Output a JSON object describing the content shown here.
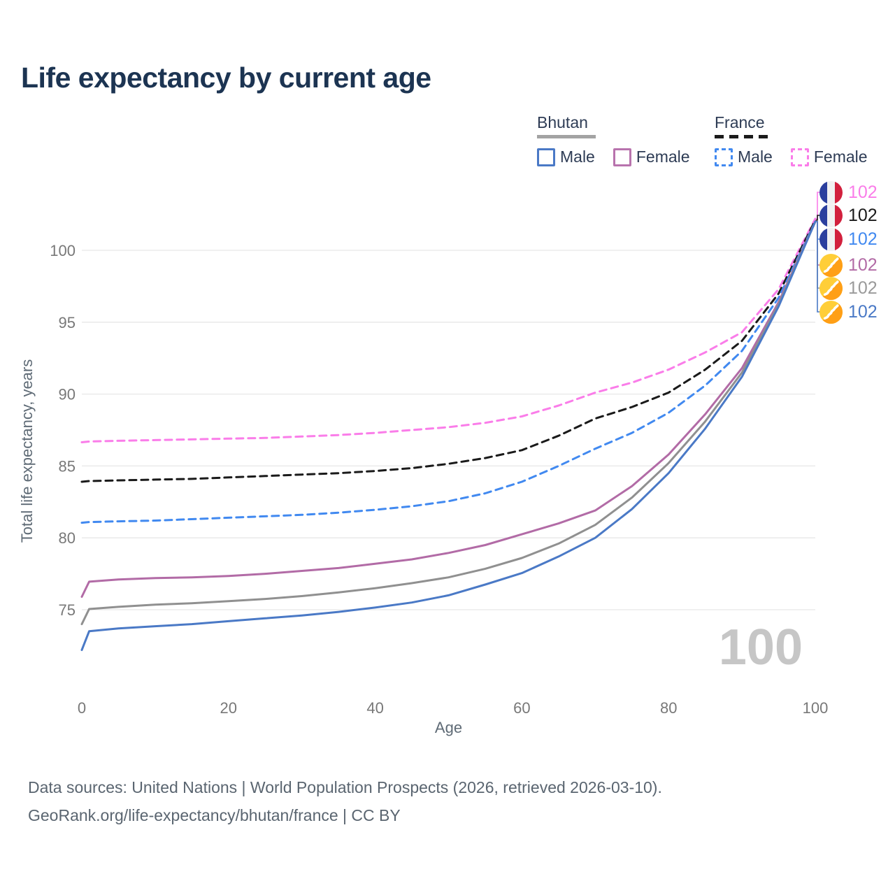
{
  "title": "Life expectancy by current age",
  "legend": {
    "groups": [
      {
        "name": "Bhutan",
        "line_style": "solid",
        "underline_color": "#a3a3a3",
        "items": [
          {
            "label": "Male",
            "color": "#4a79c6"
          },
          {
            "label": "Female",
            "color": "#b873ad"
          }
        ]
      },
      {
        "name": "France",
        "line_style": "dashed",
        "underline_color": "#1b1b1b",
        "items": [
          {
            "label": "Male",
            "color": "#4189f0"
          },
          {
            "label": "Female",
            "color": "#fa7de9"
          }
        ]
      }
    ]
  },
  "chart_data": {
    "type": "line",
    "title": "Life expectancy by current age",
    "xlabel": "Age",
    "ylabel": "Total life expectancy, years",
    "xticks": [
      0,
      20,
      40,
      60,
      80,
      100
    ],
    "yticks": [
      75,
      80,
      85,
      90,
      95,
      100
    ],
    "xlim": [
      0,
      100
    ],
    "ylim": [
      72,
      103
    ],
    "grid": "horizontal",
    "hover_age_watermark": "100",
    "x": [
      0,
      1,
      5,
      10,
      15,
      20,
      25,
      30,
      35,
      40,
      45,
      50,
      55,
      60,
      65,
      70,
      75,
      80,
      85,
      90,
      95,
      100
    ],
    "series": [
      {
        "name": "France Female",
        "country": "France",
        "sex": "Female",
        "color": "#fa7de9",
        "dash": true,
        "values": [
          86.65,
          86.7,
          86.75,
          86.8,
          86.85,
          86.9,
          86.95,
          87.05,
          87.15,
          87.3,
          87.5,
          87.7,
          88.0,
          88.45,
          89.2,
          90.1,
          90.8,
          91.7,
          92.9,
          94.3,
          97.3,
          102.2
        ]
      },
      {
        "name": "France Total",
        "country": "France",
        "sex": "Both",
        "color": "#1a1a1a",
        "dash": true,
        "values": [
          83.9,
          83.95,
          84.0,
          84.05,
          84.1,
          84.2,
          84.3,
          84.4,
          84.5,
          84.65,
          84.85,
          85.15,
          85.55,
          86.1,
          87.1,
          88.3,
          89.1,
          90.1,
          91.7,
          93.7,
          97.0,
          102.1
        ]
      },
      {
        "name": "France Male",
        "country": "France",
        "sex": "Male",
        "color": "#4189f0",
        "dash": true,
        "values": [
          81.05,
          81.1,
          81.15,
          81.2,
          81.3,
          81.4,
          81.5,
          81.6,
          81.75,
          81.95,
          82.2,
          82.55,
          83.1,
          83.9,
          85.0,
          86.2,
          87.3,
          88.7,
          90.6,
          93.0,
          96.7,
          102.0
        ]
      },
      {
        "name": "Bhutan Female",
        "country": "Bhutan",
        "sex": "Female",
        "color": "#b26ba6",
        "dash": false,
        "values": [
          75.9,
          76.95,
          77.1,
          77.2,
          77.25,
          77.35,
          77.5,
          77.7,
          77.9,
          78.2,
          78.5,
          78.95,
          79.5,
          80.25,
          81.0,
          81.9,
          83.6,
          85.8,
          88.6,
          91.8,
          96.4,
          102.0
        ]
      },
      {
        "name": "Bhutan Total",
        "country": "Bhutan",
        "sex": "Both",
        "color": "#909090",
        "dash": false,
        "values": [
          74.0,
          75.05,
          75.2,
          75.35,
          75.45,
          75.6,
          75.75,
          75.95,
          76.2,
          76.5,
          76.85,
          77.25,
          77.85,
          78.6,
          79.6,
          80.9,
          82.8,
          85.2,
          88.1,
          91.5,
          96.25,
          102.0
        ]
      },
      {
        "name": "Bhutan Male",
        "country": "Bhutan",
        "sex": "Male",
        "color": "#4a79c6",
        "dash": false,
        "values": [
          72.2,
          73.5,
          73.7,
          73.85,
          74.0,
          74.2,
          74.4,
          74.6,
          74.85,
          75.15,
          75.5,
          76.0,
          76.75,
          77.55,
          78.7,
          80.0,
          82.0,
          84.5,
          87.6,
          91.2,
          96.1,
          102.0
        ]
      }
    ],
    "end_labels": [
      {
        "value": "102",
        "flag": "france",
        "color": "#fa7de9"
      },
      {
        "value": "102",
        "flag": "france",
        "color": "#1a1a1a"
      },
      {
        "value": "102",
        "flag": "france",
        "color": "#4189f0"
      },
      {
        "value": "102",
        "flag": "bhutan",
        "color": "#b26ba6"
      },
      {
        "value": "102",
        "flag": "bhutan",
        "color": "#9a9a9a"
      },
      {
        "value": "102",
        "flag": "bhutan",
        "color": "#4a79c6"
      }
    ]
  },
  "footer": {
    "line1": "Data sources: United Nations | World Population Prospects (2026, retrieved 2026-03-10).",
    "line2": "GeoRank.org/life-expectancy/bhutan/france | CC BY"
  },
  "colors": {
    "title": "#1c3452",
    "axis_text": "#787878",
    "axis_title": "#5f6b76",
    "grid": "#e7e7e7",
    "watermark": "#c6c6c6",
    "footer": "#5a6570"
  }
}
